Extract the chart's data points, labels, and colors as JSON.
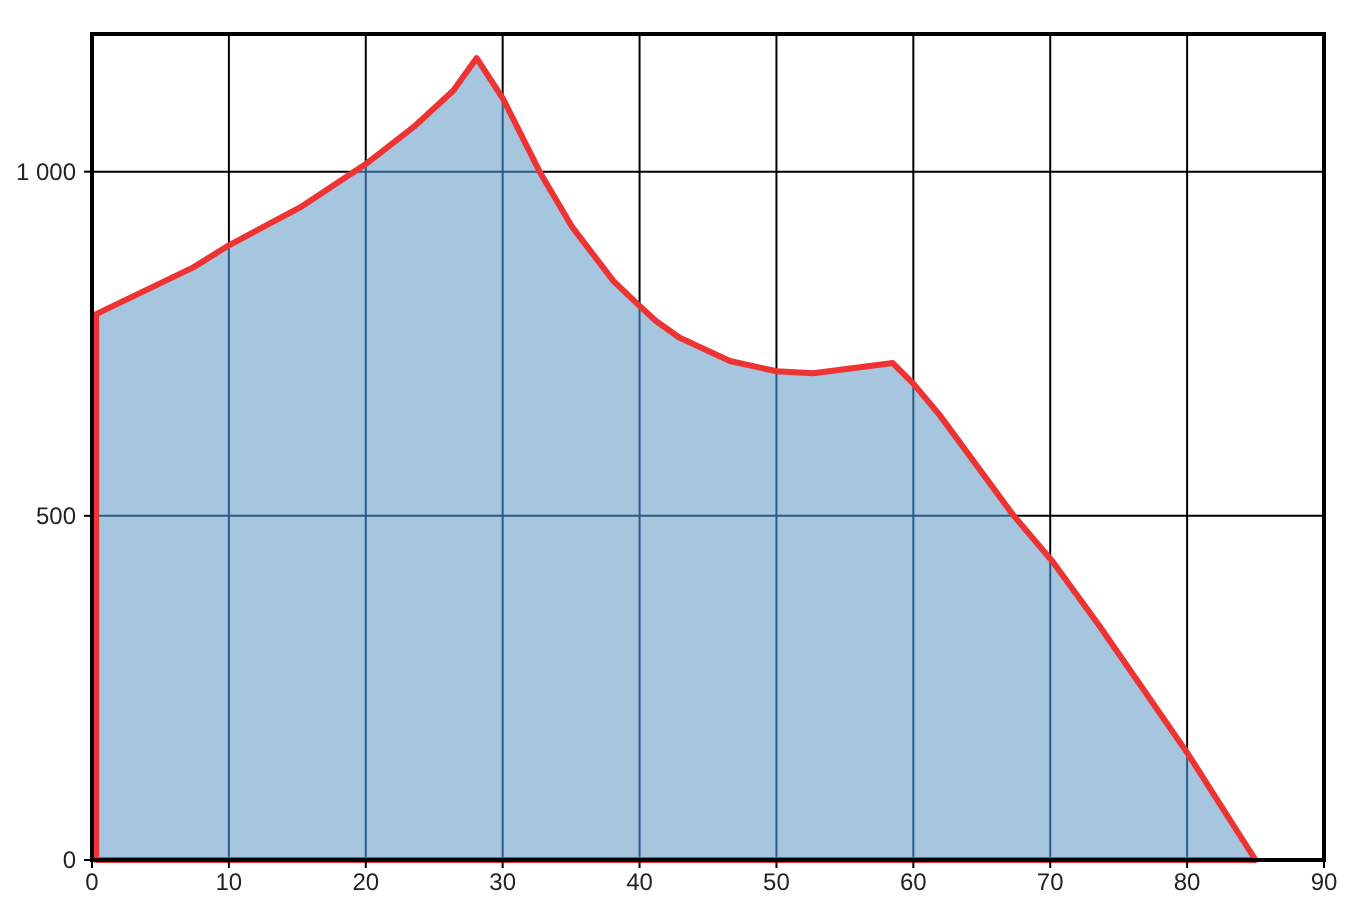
{
  "chart_data": {
    "type": "area",
    "x": [
      0.3,
      0.3,
      7.4,
      10,
      15.2,
      20,
      23.5,
      26.4,
      28.1,
      30,
      32.7,
      35.1,
      38.1,
      40,
      41.2,
      42.9,
      46.6,
      50,
      52.7,
      58.5,
      60,
      61.9,
      67.3,
      70.2,
      73.6,
      80,
      85
    ],
    "series": [
      {
        "color": "#a6c6e0",
        "values": [
          0,
          793,
          861,
          893,
          948,
          1011,
          1065,
          1118,
          1165,
          1107,
          1000,
          919,
          841,
          805,
          783,
          759,
          725,
          710,
          707,
          722,
          692,
          647,
          501,
          433,
          340,
          156,
          0
        ]
      }
    ],
    "xlim": [
      0,
      90
    ],
    "xticks": [
      0,
      10,
      20,
      30,
      40,
      50,
      60,
      70,
      80,
      90
    ],
    "ylim": [
      0,
      1200
    ],
    "yticks": [
      0,
      500,
      {
        "value": 1000,
        "label": "1 000"
      }
    ],
    "grid": true
  }
}
